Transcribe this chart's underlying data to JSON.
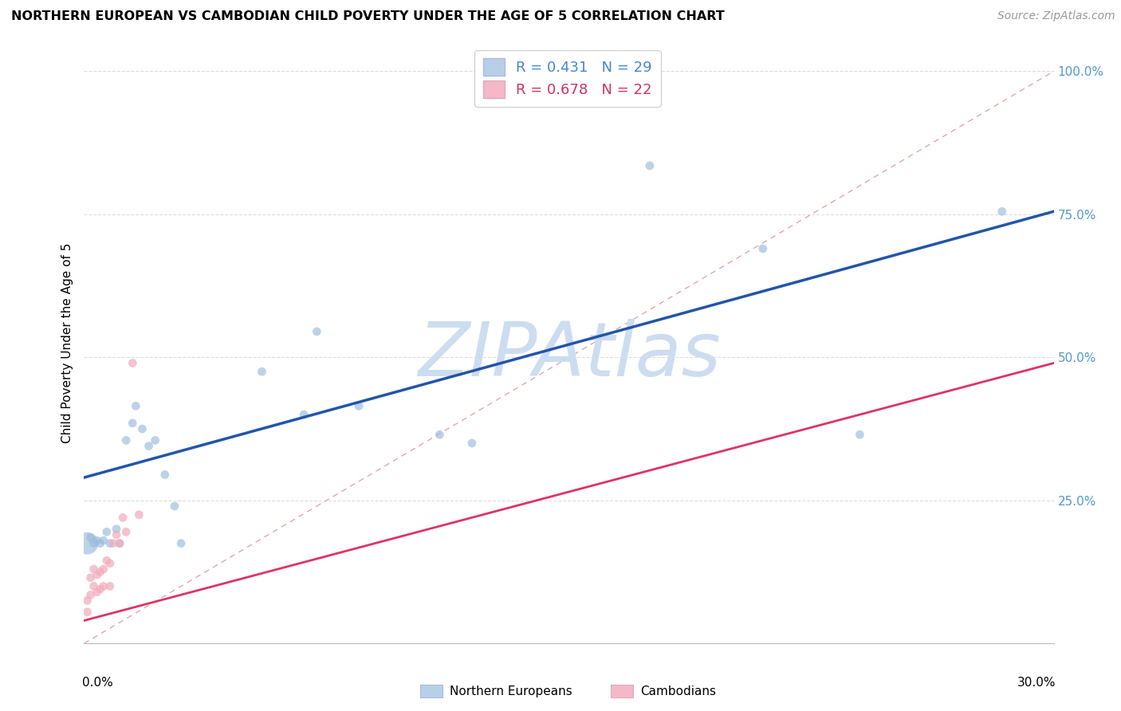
{
  "title": "NORTHERN EUROPEAN VS CAMBODIAN CHILD POVERTY UNDER THE AGE OF 5 CORRELATION CHART",
  "source": "Source: ZipAtlas.com",
  "ylabel": "Child Poverty Under the Age of 5",
  "xlim": [
    0.0,
    0.3
  ],
  "ylim": [
    0.0,
    1.05
  ],
  "yticks": [
    0.25,
    0.5,
    0.75,
    1.0
  ],
  "ytick_labels": [
    "25.0%",
    "50.0%",
    "75.0%",
    "100.0%"
  ],
  "blue_color": "#99bbdd",
  "pink_color": "#f0aabb",
  "blue_line_color": "#2255aa",
  "pink_line_color": "#dd3366",
  "ref_line_color": "#ddaaaa",
  "watermark": "ZIPAtlas",
  "watermark_color": "#ccddf0",
  "R_blue": "0.431",
  "N_blue": "29",
  "R_pink": "0.678",
  "N_pink": "22",
  "ne_x": [
    0.001,
    0.002,
    0.003,
    0.004,
    0.005,
    0.006,
    0.007,
    0.008,
    0.01,
    0.011,
    0.013,
    0.015,
    0.016,
    0.018,
    0.02,
    0.022,
    0.025,
    0.028,
    0.03,
    0.055,
    0.068,
    0.072,
    0.085,
    0.11,
    0.12,
    0.175,
    0.21,
    0.24,
    0.284
  ],
  "ne_y": [
    0.175,
    0.185,
    0.175,
    0.18,
    0.175,
    0.18,
    0.195,
    0.175,
    0.2,
    0.175,
    0.355,
    0.385,
    0.415,
    0.375,
    0.345,
    0.355,
    0.295,
    0.24,
    0.175,
    0.475,
    0.4,
    0.545,
    0.415,
    0.365,
    0.35,
    0.835,
    0.69,
    0.365,
    0.755
  ],
  "ne_sizes": [
    400,
    60,
    60,
    60,
    60,
    60,
    60,
    60,
    60,
    60,
    60,
    60,
    60,
    60,
    60,
    60,
    60,
    60,
    60,
    60,
    60,
    60,
    60,
    60,
    60,
    60,
    60,
    60,
    60
  ],
  "cam_x": [
    0.001,
    0.001,
    0.002,
    0.002,
    0.003,
    0.003,
    0.004,
    0.004,
    0.005,
    0.005,
    0.006,
    0.006,
    0.007,
    0.008,
    0.008,
    0.009,
    0.01,
    0.011,
    0.012,
    0.013,
    0.015,
    0.017
  ],
  "cam_y": [
    0.055,
    0.075,
    0.085,
    0.115,
    0.1,
    0.13,
    0.09,
    0.12,
    0.095,
    0.125,
    0.1,
    0.13,
    0.145,
    0.1,
    0.14,
    0.175,
    0.19,
    0.175,
    0.22,
    0.195,
    0.49,
    0.225
  ],
  "cam_sizes": [
    60,
    60,
    60,
    60,
    60,
    60,
    60,
    60,
    60,
    60,
    60,
    60,
    60,
    60,
    60,
    60,
    60,
    60,
    60,
    60,
    60,
    60
  ],
  "blue_line_x": [
    0.0,
    0.3
  ],
  "blue_line_y": [
    0.29,
    0.755
  ],
  "pink_line_x": [
    0.0,
    0.3
  ],
  "pink_line_y": [
    0.04,
    0.49
  ]
}
